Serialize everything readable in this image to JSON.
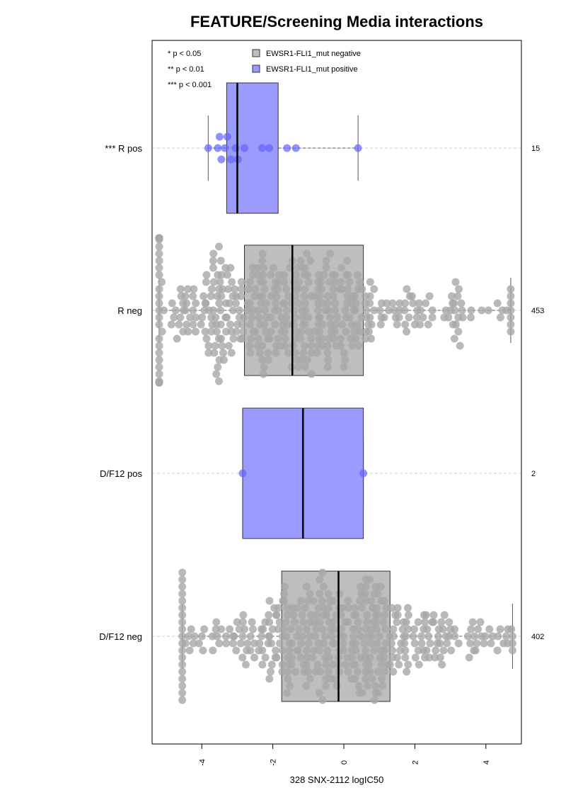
{
  "chart_data": {
    "type": "box",
    "title": "FEATURE/Screening Media interactions",
    "xlabel": "328 SNX-2112 logIC50",
    "xlim": [
      -5.4,
      5.0
    ],
    "xticks": [
      -4,
      -2,
      0,
      2,
      4
    ],
    "xtick_labels": [
      "-4",
      "-2",
      "0",
      "2",
      "4"
    ],
    "significance_legend": [
      "* p < 0.05",
      "** p < 0.01",
      "*** p < 0.001"
    ],
    "series": [
      {
        "name": "EWSR1-FLI1_mut negative",
        "color": "#bebebe",
        "edge": "#595959",
        "point_color": "#a8a8a8"
      },
      {
        "name": "EWSR1-FLI1_mut positive",
        "color": "#9a9aff",
        "edge": "#4d4d80",
        "point_color": "#6464ff"
      }
    ],
    "groups": [
      {
        "label": "*** R pos",
        "series": 1,
        "n": "15",
        "min": -3.82,
        "q1": -3.3,
        "median": -3.0,
        "q3": -1.85,
        "max": 0.4,
        "points": [
          -3.82,
          -3.55,
          -3.45,
          -3.35,
          -3.28,
          -3.18,
          -3.05,
          -2.98,
          -2.8,
          -2.3,
          -2.1,
          -1.6,
          -1.35,
          0.4,
          -3.5
        ]
      },
      {
        "label": "R neg",
        "series": 0,
        "n": "453",
        "min": -5.2,
        "q1": -2.8,
        "median": -1.45,
        "q3": 0.55,
        "max": 4.7,
        "spread": 2.9
      },
      {
        "label": "D/F12 pos",
        "series": 1,
        "n": "2",
        "min": -2.85,
        "q1": -2.85,
        "median": -1.15,
        "q3": 0.55,
        "max": 0.55,
        "points": [
          -2.85,
          0.55
        ]
      },
      {
        "label": "D/F12 neg",
        "series": 0,
        "n": "402",
        "min": -4.55,
        "q1": -1.75,
        "median": -0.15,
        "q3": 1.3,
        "max": 4.75,
        "spread": 2.6
      }
    ]
  }
}
